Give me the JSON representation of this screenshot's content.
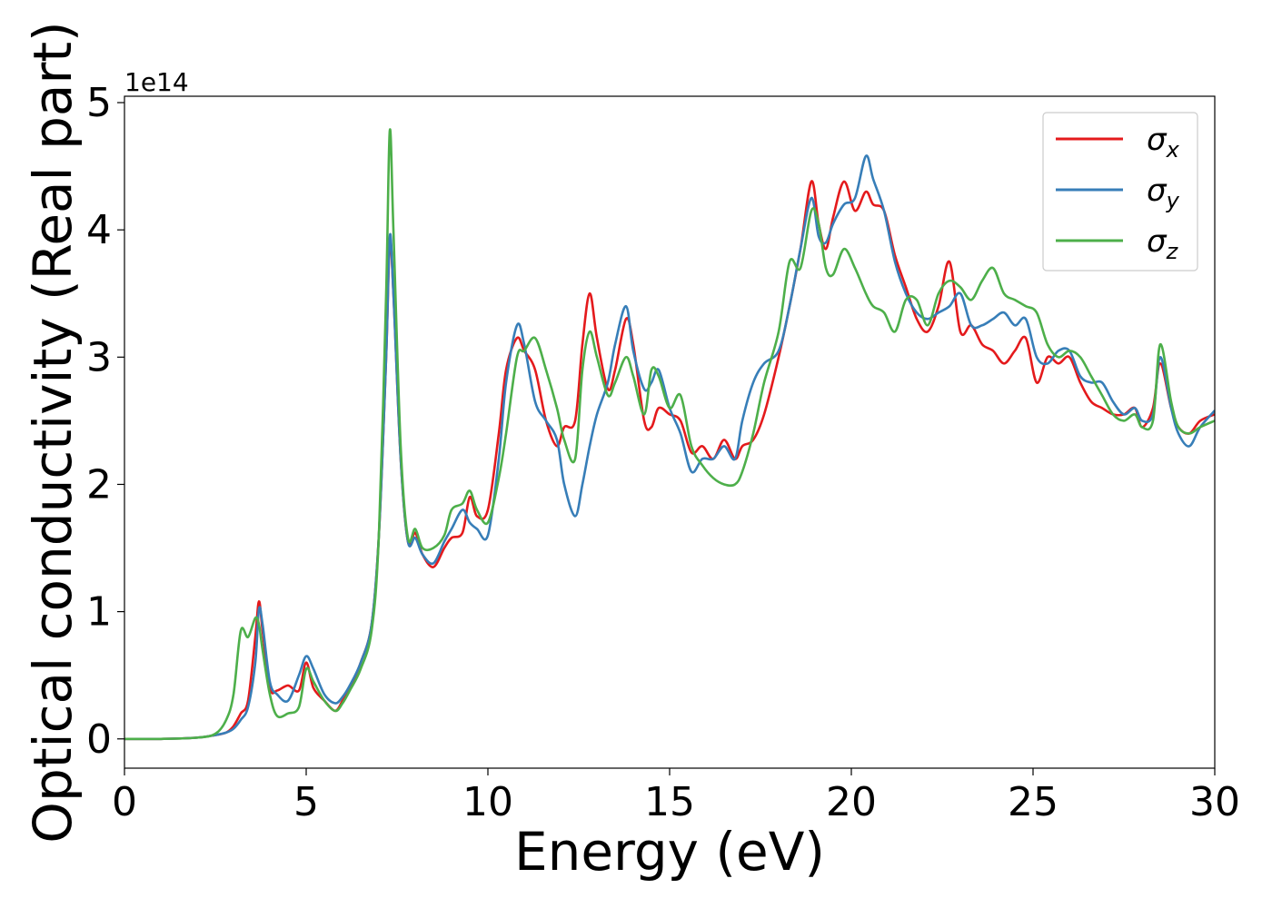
{
  "chart_data": {
    "type": "line",
    "xlabel": "Energy (eV)",
    "ylabel": "Optical conductivity (Real part)",
    "y_offset_label": "1e14",
    "y_scale": 100000000000000.0,
    "xlim": [
      0,
      30
    ],
    "ylim": [
      -0.23,
      5.05
    ],
    "xticks": [
      0,
      5,
      10,
      15,
      20,
      25,
      30
    ],
    "xtick_labels": [
      "0",
      "5",
      "10",
      "15",
      "20",
      "25",
      "30"
    ],
    "yticks": [
      0,
      1,
      2,
      3,
      4,
      5
    ],
    "ytick_labels": [
      "0",
      "1",
      "2",
      "3",
      "4",
      "5"
    ],
    "grid": false,
    "legend_position": "top-right",
    "series": [
      {
        "name": "σ",
        "subscript": "x",
        "color": "#e41a1c",
        "x": [
          0,
          1,
          2,
          2.5,
          2.8,
          3,
          3.2,
          3.4,
          3.6,
          3.7,
          3.8,
          4,
          4.2,
          4.5,
          4.8,
          5,
          5.2,
          5.5,
          5.8,
          6,
          6.2,
          6.5,
          6.8,
          7,
          7.2,
          7.3,
          7.4,
          7.6,
          7.8,
          8,
          8.2,
          8.5,
          8.8,
          9,
          9.3,
          9.5,
          9.7,
          10,
          10.3,
          10.5,
          10.8,
          11,
          11.3,
          11.6,
          11.9,
          12.1,
          12.4,
          12.6,
          12.8,
          13,
          13.3,
          13.5,
          13.8,
          14,
          14.3,
          14.5,
          14.7,
          15,
          15.3,
          15.6,
          15.9,
          16.2,
          16.5,
          16.8,
          17,
          17.3,
          17.6,
          18,
          18.3,
          18.6,
          18.9,
          19.1,
          19.3,
          19.5,
          19.8,
          20.1,
          20.4,
          20.6,
          20.9,
          21.2,
          21.5,
          21.8,
          22.1,
          22.4,
          22.7,
          23,
          23.3,
          23.6,
          23.9,
          24.2,
          24.5,
          24.8,
          25.1,
          25.4,
          25.7,
          26,
          26.3,
          26.6,
          26.9,
          27.2,
          27.5,
          27.8,
          28,
          28.3,
          28.5,
          28.8,
          29,
          29.3,
          29.6,
          30
        ],
        "y": [
          0,
          0,
          0.01,
          0.03,
          0.05,
          0.1,
          0.2,
          0.3,
          0.8,
          1.08,
          0.85,
          0.4,
          0.38,
          0.42,
          0.38,
          0.6,
          0.4,
          0.3,
          0.22,
          0.3,
          0.4,
          0.6,
          0.9,
          1.6,
          3.0,
          3.9,
          3.5,
          2.2,
          1.55,
          1.62,
          1.45,
          1.35,
          1.5,
          1.58,
          1.62,
          1.9,
          1.75,
          1.8,
          2.4,
          2.9,
          3.15,
          3.05,
          2.9,
          2.5,
          2.3,
          2.45,
          2.5,
          3.1,
          3.5,
          3.15,
          2.75,
          2.9,
          3.3,
          3.1,
          2.5,
          2.45,
          2.6,
          2.55,
          2.5,
          2.25,
          2.3,
          2.2,
          2.35,
          2.2,
          2.3,
          2.35,
          2.55,
          3.0,
          3.4,
          3.85,
          4.38,
          4.05,
          3.85,
          4.1,
          4.38,
          4.15,
          4.3,
          4.2,
          4.15,
          3.8,
          3.55,
          3.3,
          3.2,
          3.4,
          3.75,
          3.2,
          3.25,
          3.1,
          3.05,
          2.95,
          3.05,
          3.15,
          2.8,
          3.0,
          2.95,
          3.0,
          2.8,
          2.65,
          2.6,
          2.55,
          2.55,
          2.6,
          2.45,
          2.6,
          2.95,
          2.6,
          2.45,
          2.4,
          2.5,
          2.55
        ]
      },
      {
        "name": "σ",
        "subscript": "y",
        "color": "#377eb8",
        "x": [
          0,
          1,
          2,
          2.5,
          2.8,
          3,
          3.2,
          3.4,
          3.6,
          3.7,
          3.8,
          4,
          4.2,
          4.5,
          4.8,
          5,
          5.2,
          5.5,
          5.8,
          6,
          6.2,
          6.5,
          6.8,
          7,
          7.2,
          7.3,
          7.4,
          7.6,
          7.8,
          8,
          8.2,
          8.5,
          8.8,
          9,
          9.3,
          9.5,
          9.7,
          10,
          10.3,
          10.5,
          10.8,
          11,
          11.3,
          11.6,
          11.9,
          12.1,
          12.4,
          12.6,
          12.8,
          13,
          13.3,
          13.5,
          13.8,
          14,
          14.3,
          14.5,
          14.7,
          15,
          15.3,
          15.6,
          15.9,
          16.2,
          16.5,
          16.8,
          17,
          17.3,
          17.6,
          18,
          18.3,
          18.6,
          18.9,
          19.1,
          19.3,
          19.5,
          19.8,
          20.1,
          20.4,
          20.6,
          20.9,
          21.2,
          21.5,
          21.8,
          22.1,
          22.4,
          22.7,
          23,
          23.3,
          23.6,
          23.9,
          24.2,
          24.5,
          24.8,
          25.1,
          25.4,
          25.7,
          26,
          26.3,
          26.6,
          26.9,
          27.2,
          27.5,
          27.8,
          28,
          28.3,
          28.5,
          28.8,
          29,
          29.3,
          29.6,
          30
        ],
        "y": [
          0,
          0,
          0.01,
          0.03,
          0.05,
          0.08,
          0.15,
          0.25,
          0.6,
          1.02,
          0.9,
          0.45,
          0.35,
          0.3,
          0.5,
          0.65,
          0.55,
          0.35,
          0.28,
          0.33,
          0.42,
          0.6,
          0.9,
          1.6,
          3.0,
          3.95,
          3.5,
          2.2,
          1.55,
          1.58,
          1.45,
          1.38,
          1.55,
          1.65,
          1.8,
          1.7,
          1.65,
          1.6,
          2.2,
          2.8,
          3.25,
          3.1,
          2.65,
          2.5,
          2.35,
          2.0,
          1.75,
          2.0,
          2.3,
          2.55,
          2.8,
          3.1,
          3.4,
          3.05,
          2.75,
          2.8,
          2.9,
          2.6,
          2.4,
          2.1,
          2.2,
          2.2,
          2.3,
          2.2,
          2.5,
          2.8,
          2.95,
          3.05,
          3.4,
          3.85,
          4.25,
          3.95,
          3.9,
          4.05,
          4.2,
          4.25,
          4.58,
          4.4,
          4.15,
          3.75,
          3.5,
          3.35,
          3.3,
          3.35,
          3.4,
          3.5,
          3.25,
          3.25,
          3.3,
          3.35,
          3.25,
          3.3,
          3.0,
          2.95,
          3.05,
          3.05,
          2.85,
          2.8,
          2.8,
          2.65,
          2.55,
          2.6,
          2.5,
          2.55,
          3.0,
          2.6,
          2.4,
          2.3,
          2.45,
          2.58
        ]
      },
      {
        "name": "σ",
        "subscript": "z",
        "color": "#4daf4a",
        "x": [
          0,
          1,
          2,
          2.5,
          2.8,
          3,
          3.2,
          3.4,
          3.6,
          3.7,
          3.8,
          4,
          4.2,
          4.5,
          4.8,
          5,
          5.2,
          5.5,
          5.8,
          6,
          6.2,
          6.5,
          6.8,
          7,
          7.2,
          7.3,
          7.4,
          7.6,
          7.8,
          8,
          8.2,
          8.5,
          8.8,
          9,
          9.3,
          9.5,
          9.7,
          10,
          10.3,
          10.5,
          10.8,
          11,
          11.3,
          11.6,
          11.9,
          12.1,
          12.4,
          12.6,
          12.8,
          13,
          13.3,
          13.5,
          13.8,
          14,
          14.3,
          14.5,
          14.7,
          15,
          15.3,
          15.6,
          15.9,
          16.2,
          16.5,
          16.8,
          17,
          17.3,
          17.6,
          18,
          18.3,
          18.6,
          18.9,
          19.1,
          19.3,
          19.5,
          19.8,
          20.1,
          20.4,
          20.6,
          20.9,
          21.2,
          21.5,
          21.8,
          22.1,
          22.4,
          22.7,
          23,
          23.3,
          23.6,
          23.9,
          24.2,
          24.5,
          24.8,
          25.1,
          25.4,
          25.7,
          26,
          26.3,
          26.6,
          26.9,
          27.2,
          27.5,
          27.8,
          28,
          28.3,
          28.5,
          28.8,
          29,
          29.3,
          29.6,
          30
        ],
        "y": [
          0,
          0,
          0.01,
          0.04,
          0.15,
          0.35,
          0.85,
          0.8,
          0.95,
          0.9,
          0.7,
          0.35,
          0.18,
          0.2,
          0.25,
          0.55,
          0.45,
          0.3,
          0.22,
          0.28,
          0.38,
          0.55,
          0.85,
          1.6,
          3.5,
          4.78,
          4.0,
          2.3,
          1.58,
          1.65,
          1.5,
          1.5,
          1.6,
          1.8,
          1.85,
          1.95,
          1.8,
          1.7,
          2.05,
          2.4,
          3.0,
          3.05,
          3.15,
          2.9,
          2.6,
          2.35,
          2.2,
          2.9,
          3.2,
          3.0,
          2.7,
          2.8,
          3.0,
          2.85,
          2.55,
          2.9,
          2.85,
          2.6,
          2.7,
          2.3,
          2.15,
          2.05,
          2.0,
          2.0,
          2.1,
          2.4,
          2.8,
          3.2,
          3.75,
          3.7,
          4.15,
          4.05,
          3.7,
          3.65,
          3.85,
          3.7,
          3.5,
          3.4,
          3.35,
          3.2,
          3.45,
          3.45,
          3.25,
          3.5,
          3.6,
          3.55,
          3.45,
          3.6,
          3.7,
          3.5,
          3.45,
          3.4,
          3.35,
          3.1,
          3.0,
          3.05,
          3.0,
          2.85,
          2.7,
          2.55,
          2.5,
          2.55,
          2.45,
          2.5,
          3.1,
          2.65,
          2.45,
          2.4,
          2.45,
          2.5
        ]
      }
    ]
  }
}
